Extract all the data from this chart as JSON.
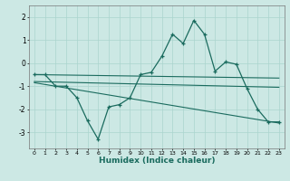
{
  "title": "",
  "xlabel": "Humidex (Indice chaleur)",
  "background_color": "#cce8e4",
  "line_color": "#1a6b5e",
  "grid_color": "#aad4ce",
  "xlim": [
    -0.5,
    23.5
  ],
  "ylim": [
    -3.7,
    2.5
  ],
  "yticks": [
    -3,
    -2,
    -1,
    0,
    1,
    2
  ],
  "xticks": [
    0,
    1,
    2,
    3,
    4,
    5,
    6,
    7,
    8,
    9,
    10,
    11,
    12,
    13,
    14,
    15,
    16,
    17,
    18,
    19,
    20,
    21,
    22,
    23
  ],
  "main_line_x": [
    0,
    1,
    2,
    3,
    4,
    5,
    6,
    7,
    8,
    9,
    10,
    11,
    12,
    13,
    14,
    15,
    16,
    17,
    18,
    19,
    20,
    21,
    22,
    23
  ],
  "main_line_y": [
    -0.5,
    -0.5,
    -1.0,
    -1.0,
    -1.5,
    -2.5,
    -3.3,
    -1.9,
    -1.8,
    -1.5,
    -0.5,
    -0.4,
    0.3,
    1.25,
    0.85,
    1.85,
    1.25,
    -0.35,
    0.05,
    -0.05,
    -1.1,
    -2.0,
    -2.55,
    -2.55
  ],
  "upper_line_x": [
    0,
    23
  ],
  "upper_line_y": [
    -0.5,
    -0.65
  ],
  "middle_line_x": [
    0,
    23
  ],
  "middle_line_y": [
    -0.8,
    -1.05
  ],
  "lower_line_x": [
    0,
    23
  ],
  "lower_line_y": [
    -0.85,
    -2.6
  ]
}
